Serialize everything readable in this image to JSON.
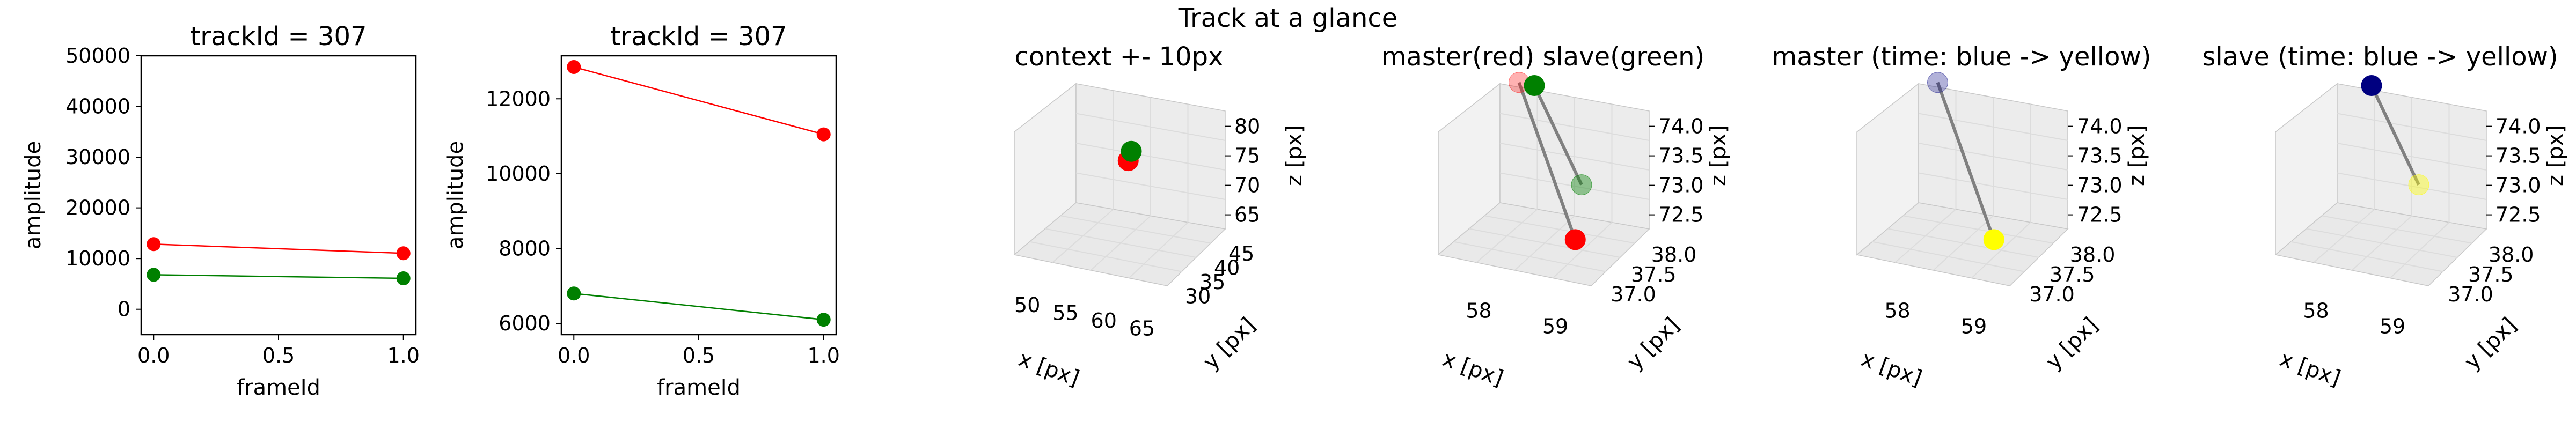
{
  "figure": {
    "suptitle": "Track at a glance"
  },
  "colors": {
    "master": "#ff0000",
    "slave": "#008000",
    "link_line": "#808080",
    "pane": "#f2f2f2",
    "grid": "#dcdcdc",
    "time_start": "#000080",
    "time_end": "#ffff00"
  },
  "chart_data": [
    {
      "type": "line",
      "title": "trackId = 307",
      "xlabel": "frameId",
      "ylabel": "amplitude",
      "xlim": [
        -0.05,
        1.05
      ],
      "ylim": [
        -5000,
        50000
      ],
      "xticks": [
        0.0,
        0.5,
        1.0
      ],
      "xtick_labels": [
        "0.0",
        "0.5",
        "1.0"
      ],
      "yticks": [
        0,
        10000,
        20000,
        30000,
        40000,
        50000
      ],
      "ytick_labels": [
        "0",
        "10000",
        "20000",
        "30000",
        "40000",
        "50000"
      ],
      "x": [
        0,
        1
      ],
      "series": [
        {
          "color": "#ff0000",
          "values": [
            12850,
            11050
          ]
        },
        {
          "color": "#008000",
          "values": [
            6800,
            6100
          ]
        }
      ]
    },
    {
      "type": "line",
      "title": "trackId = 307",
      "xlabel": "frameId",
      "ylabel": "amplitude",
      "xlim": [
        -0.05,
        1.05
      ],
      "ylim": [
        5700,
        13150
      ],
      "xticks": [
        0.0,
        0.5,
        1.0
      ],
      "xtick_labels": [
        "0.0",
        "0.5",
        "1.0"
      ],
      "yticks": [
        6000,
        8000,
        10000,
        12000
      ],
      "ytick_labels": [
        "6000",
        "8000",
        "10000",
        "12000"
      ],
      "x": [
        0,
        1
      ],
      "series": [
        {
          "color": "#ff0000",
          "values": [
            12850,
            11050
          ]
        },
        {
          "color": "#008000",
          "values": [
            6800,
            6100
          ]
        }
      ]
    },
    {
      "type": "scatter3d",
      "title": "context +- 10px",
      "xlabel": "x [px]",
      "ylabel": "y [px]",
      "zlabel": "z [px]",
      "xticks": [
        "50",
        "55",
        "60",
        "65"
      ],
      "yticks": [
        "30",
        "35",
        "40",
        "45"
      ],
      "zticks": [
        "65",
        "70",
        "75",
        "80"
      ],
      "points": [
        {
          "series": "master",
          "x": 58,
          "y": 37,
          "z": 73.0,
          "color": "#ff0000"
        },
        {
          "series": "slave",
          "x": 58,
          "y": 38,
          "z": 74.0,
          "color": "#008000"
        }
      ]
    },
    {
      "type": "scatter3d",
      "title": "master(red) slave(green)",
      "xlabel": "x [px]",
      "ylabel": "y [px]",
      "zlabel": "z [px]",
      "xticks": [
        "58",
        "59"
      ],
      "yticks": [
        "37.0",
        "37.5",
        "38.0"
      ],
      "zticks": [
        "72.5",
        "73.0",
        "73.5",
        "74.0"
      ],
      "points": [
        {
          "series": "master",
          "frame": 0,
          "x": 57.7,
          "y": 38.0,
          "z": 74.0,
          "color": "#ff0000",
          "alpha": 0.3
        },
        {
          "series": "master",
          "frame": 1,
          "x": 59.0,
          "y": 37.0,
          "z": 72.5,
          "color": "#ff0000",
          "alpha": 1.0
        },
        {
          "series": "slave",
          "frame": 0,
          "x": 57.9,
          "y": 38.0,
          "z": 74.0,
          "color": "#008000",
          "alpha": 1.0
        },
        {
          "series": "slave",
          "frame": 1,
          "x": 58.8,
          "y": 37.5,
          "z": 73.0,
          "color": "#008000",
          "alpha": 0.4
        }
      ]
    },
    {
      "type": "scatter3d",
      "title": "master (time: blue -> yellow)",
      "xlabel": "x [px]",
      "ylabel": "y [px]",
      "zlabel": "z [px]",
      "xticks": [
        "58",
        "59"
      ],
      "yticks": [
        "37.0",
        "37.5",
        "38.0"
      ],
      "zticks": [
        "72.5",
        "73.0",
        "73.5",
        "74.0"
      ],
      "points": [
        {
          "frame": 0,
          "x": 57.7,
          "y": 38.0,
          "z": 74.0,
          "color": "#000080",
          "alpha": 0.3
        },
        {
          "frame": 1,
          "x": 59.0,
          "y": 37.0,
          "z": 72.5,
          "color": "#ffff00",
          "alpha": 1.0
        }
      ]
    },
    {
      "type": "scatter3d",
      "title": "slave (time: blue -> yellow)",
      "xlabel": "x [px]",
      "ylabel": "y [px]",
      "zlabel": "z [px]",
      "xticks": [
        "58",
        "59"
      ],
      "yticks": [
        "37.0",
        "37.5",
        "38.0"
      ],
      "zticks": [
        "72.5",
        "73.0",
        "73.5",
        "74.0"
      ],
      "points": [
        {
          "frame": 0,
          "x": 57.9,
          "y": 38.0,
          "z": 74.0,
          "color": "#000080",
          "alpha": 1.0
        },
        {
          "frame": 1,
          "x": 58.8,
          "y": 37.5,
          "z": 73.0,
          "color": "#ffff00",
          "alpha": 0.4
        }
      ]
    }
  ]
}
